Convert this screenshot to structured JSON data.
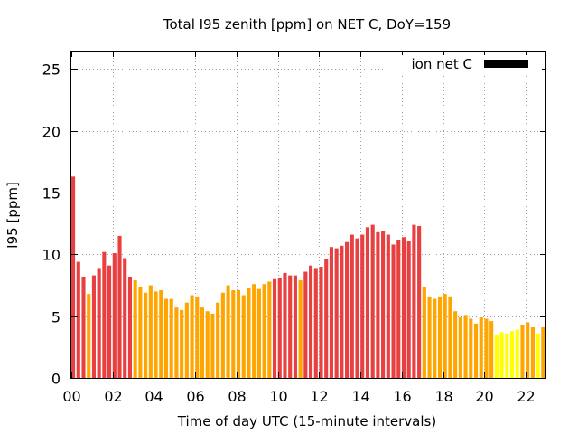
{
  "chart_data": {
    "type": "bar",
    "title": "Total I95 zenith [ppm] on NET C, DoY=159",
    "xlabel": "Time of day UTC (15-minute intervals)",
    "ylabel": "I95 [ppm]",
    "xlim": [
      0,
      23.0
    ],
    "ylim": [
      0,
      26.5
    ],
    "xticks": [
      0,
      2,
      4,
      6,
      8,
      10,
      12,
      14,
      16,
      18,
      20,
      22
    ],
    "xtick_labels": [
      "00",
      "02",
      "04",
      "06",
      "08",
      "10",
      "12",
      "14",
      "16",
      "18",
      "20",
      "22"
    ],
    "yticks": [
      0,
      5,
      10,
      15,
      20,
      25
    ],
    "ytick_labels": [
      "0",
      "5",
      "10",
      "15",
      "20",
      "25"
    ],
    "grid": true,
    "legend": {
      "position": "top-right",
      "label": "ion net C",
      "color": "#000000"
    },
    "colors": {
      "red": "#e84040",
      "orange": "#ffa500",
      "yellow": "#ffff00"
    },
    "x": [
      0.0,
      0.25,
      0.5,
      0.75,
      1.0,
      1.25,
      1.5,
      1.75,
      2.0,
      2.25,
      2.5,
      2.75,
      3.0,
      3.25,
      3.5,
      3.75,
      4.0,
      4.25,
      4.5,
      4.75,
      5.0,
      5.25,
      5.5,
      5.75,
      6.0,
      6.25,
      6.5,
      6.75,
      7.0,
      7.25,
      7.5,
      7.75,
      8.0,
      8.25,
      8.5,
      8.75,
      9.0,
      9.25,
      9.5,
      9.75,
      10.0,
      10.25,
      10.5,
      10.75,
      11.0,
      11.25,
      11.5,
      11.75,
      12.0,
      12.25,
      12.5,
      12.75,
      13.0,
      13.25,
      13.5,
      13.75,
      14.0,
      14.25,
      14.5,
      14.75,
      15.0,
      15.25,
      15.5,
      15.75,
      16.0,
      16.25,
      16.5,
      16.75,
      17.0,
      17.25,
      17.5,
      17.75,
      18.0,
      18.25,
      18.5,
      18.75,
      19.0,
      19.25,
      19.5,
      19.75,
      20.0,
      20.25,
      20.5,
      20.75,
      21.0,
      21.25,
      21.5,
      21.75,
      22.0,
      22.25,
      22.5,
      22.75
    ],
    "values": [
      16.3,
      9.4,
      8.2,
      6.8,
      8.3,
      8.9,
      10.2,
      9.1,
      10.1,
      11.5,
      9.7,
      8.2,
      7.9,
      7.4,
      6.9,
      7.5,
      7.0,
      7.1,
      6.4,
      6.4,
      5.7,
      5.5,
      6.1,
      6.7,
      6.6,
      5.7,
      5.4,
      5.2,
      6.1,
      6.9,
      7.5,
      7.1,
      7.1,
      6.7,
      7.3,
      7.6,
      7.2,
      7.6,
      7.8,
      8.0,
      8.1,
      8.5,
      8.3,
      8.3,
      7.9,
      8.6,
      9.1,
      8.9,
      9.0,
      9.6,
      10.6,
      10.5,
      10.7,
      11.0,
      11.6,
      11.3,
      11.6,
      12.2,
      12.4,
      11.8,
      11.9,
      11.6,
      10.8,
      11.2,
      11.4,
      11.1,
      12.4,
      12.3,
      7.4,
      6.6,
      6.4,
      6.6,
      6.8,
      6.6,
      5.4,
      4.9,
      5.1,
      4.8,
      4.4,
      4.9,
      4.8,
      4.6,
      3.5,
      3.7,
      3.6,
      3.8,
      3.9,
      4.3,
      4.5,
      4.1,
      3.6,
      4.1
    ],
    "bar_colors": [
      "red",
      "red",
      "red",
      "orange",
      "red",
      "red",
      "red",
      "red",
      "red",
      "red",
      "red",
      "red",
      "orange",
      "orange",
      "orange",
      "orange",
      "orange",
      "orange",
      "orange",
      "orange",
      "orange",
      "orange",
      "orange",
      "orange",
      "orange",
      "orange",
      "orange",
      "orange",
      "orange",
      "orange",
      "orange",
      "orange",
      "orange",
      "orange",
      "orange",
      "orange",
      "orange",
      "orange",
      "orange",
      "red",
      "red",
      "red",
      "red",
      "red",
      "orange",
      "red",
      "red",
      "red",
      "red",
      "red",
      "red",
      "red",
      "red",
      "red",
      "red",
      "red",
      "red",
      "red",
      "red",
      "red",
      "red",
      "red",
      "red",
      "red",
      "red",
      "red",
      "red",
      "red",
      "orange",
      "orange",
      "orange",
      "orange",
      "orange",
      "orange",
      "orange",
      "orange",
      "orange",
      "orange",
      "orange",
      "orange",
      "orange",
      "orange",
      "yellow",
      "yellow",
      "yellow",
      "yellow",
      "yellow",
      "orange",
      "orange",
      "orange",
      "yellow",
      "orange"
    ]
  }
}
